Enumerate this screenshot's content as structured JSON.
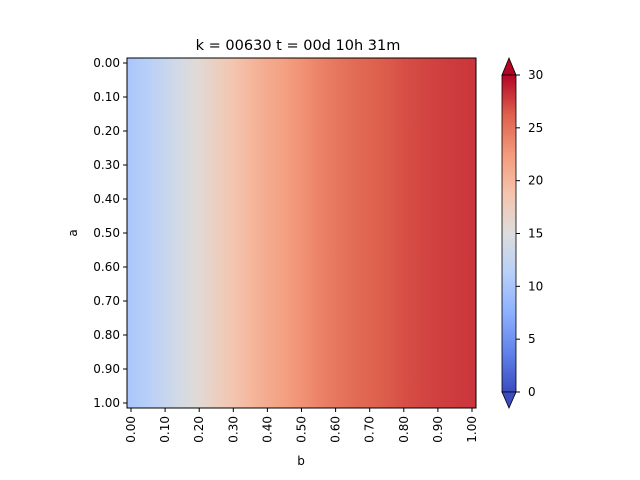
{
  "chart_data": {
    "type": "heatmap",
    "title": "k = 00630 t = 00d 10h 31m",
    "xlabel": "b",
    "ylabel": "a",
    "x_tick_labels": [
      "0.00",
      "0.10",
      "0.20",
      "0.30",
      "0.40",
      "0.50",
      "0.60",
      "0.70",
      "0.80",
      "0.90",
      "1.00"
    ],
    "y_tick_labels": [
      "0.00",
      "0.10",
      "0.20",
      "0.30",
      "0.40",
      "0.50",
      "0.60",
      "0.70",
      "0.80",
      "0.90",
      "1.00"
    ],
    "xlim": [
      0,
      1
    ],
    "ylim": [
      1,
      0
    ],
    "x": [
      0.0,
      0.05,
      0.1,
      0.15,
      0.2,
      0.25,
      0.3,
      0.35,
      0.4,
      0.45,
      0.5,
      0.55,
      0.6,
      0.65,
      0.7,
      0.75,
      0.8,
      0.85,
      0.9,
      0.95,
      1.0
    ],
    "values_by_x": [
      10.0,
      11.0,
      12.5,
      14.0,
      15.5,
      17.0,
      18.5,
      19.8,
      21.0,
      22.0,
      23.0,
      24.0,
      24.8,
      25.5,
      26.0,
      26.5,
      27.0,
      27.3,
      27.6,
      27.8,
      28.0
    ],
    "colormap": "coolwarm",
    "colorbar": {
      "ticks": [
        "0",
        "5",
        "10",
        "15",
        "20",
        "25",
        "30"
      ],
      "range": [
        0,
        30
      ],
      "extend": "both"
    },
    "grid": false
  }
}
